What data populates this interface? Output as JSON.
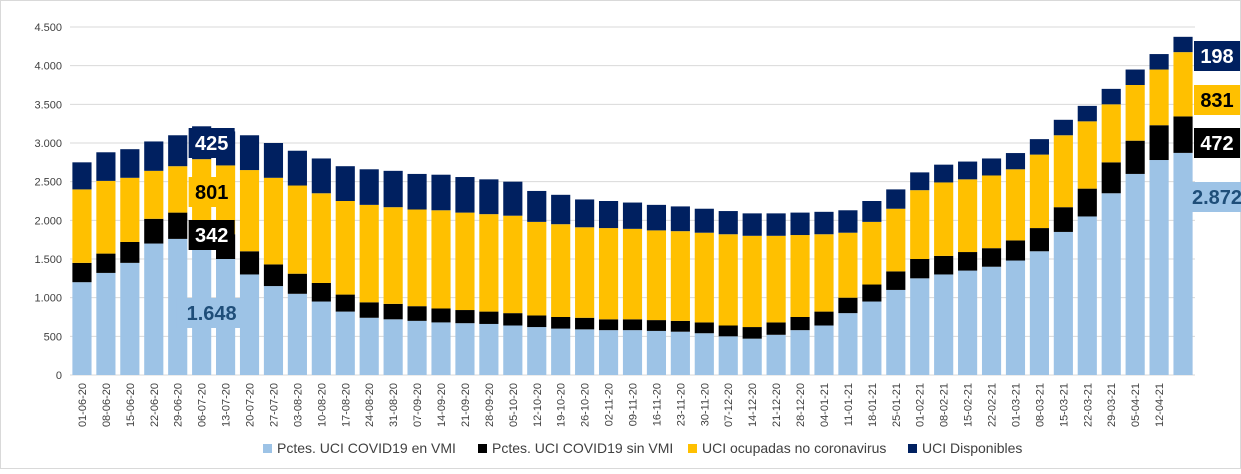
{
  "chart_data": {
    "type": "stacked_bar",
    "categories": [
      "01-06-20",
      "08-06-20",
      "15-06-20",
      "22-06-20",
      "29-06-20",
      "06-07-20",
      "13-07-20",
      "20-07-20",
      "27-07-20",
      "03-08-20",
      "10-08-20",
      "17-08-20",
      "24-08-20",
      "31-08-20",
      "07-09-20",
      "14-09-20",
      "21-09-20",
      "28-09-20",
      "05-10-20",
      "12-10-20",
      "19-10-20",
      "26-10-20",
      "02-11-20",
      "09-11-20",
      "16-11-20",
      "23-11-20",
      "30-11-20",
      "07-12-20",
      "14-12-20",
      "21-12-20",
      "28-12-20",
      "04-01-21",
      "11-01-21",
      "18-01-21",
      "25-01-21",
      "01-02-21",
      "08-02-21",
      "15-02-21",
      "22-02-21",
      "01-03-21",
      "08-03-21",
      "15-03-21",
      "22-03-21",
      "29-03-21",
      "05-04-21",
      "12-04-21",
      null
    ],
    "series": [
      {
        "name": "Pctes. UCI COVID19 en VMI",
        "color": "#9dc3e6",
        "values": [
          1200,
          1320,
          1450,
          1700,
          1760,
          1648,
          1500,
          1300,
          1150,
          1050,
          950,
          820,
          740,
          720,
          700,
          680,
          670,
          660,
          640,
          620,
          600,
          590,
          580,
          580,
          570,
          560,
          540,
          500,
          470,
          520,
          580,
          640,
          800,
          950,
          1100,
          1250,
          1300,
          1350,
          1400,
          1480,
          1600,
          1850,
          2050,
          2350,
          2600,
          2780,
          2872
        ],
        "value_labels": [
          null,
          null,
          null,
          null,
          null,
          "1.648",
          null,
          null,
          null,
          null,
          null,
          null,
          null,
          null,
          null,
          null,
          null,
          null,
          null,
          null,
          null,
          null,
          null,
          null,
          null,
          null,
          null,
          null,
          null,
          null,
          null,
          null,
          null,
          null,
          null,
          null,
          null,
          null,
          null,
          null,
          null,
          null,
          null,
          null,
          null,
          null,
          "2.872"
        ]
      },
      {
        "name": "Pctes. UCI COVID19 sin VMI",
        "color": "#000000",
        "values": [
          250,
          250,
          270,
          320,
          340,
          342,
          320,
          300,
          280,
          260,
          240,
          220,
          200,
          200,
          190,
          180,
          170,
          160,
          160,
          150,
          150,
          150,
          140,
          140,
          140,
          140,
          140,
          140,
          150,
          160,
          170,
          180,
          200,
          220,
          240,
          250,
          240,
          240,
          240,
          260,
          300,
          320,
          360,
          400,
          430,
          450,
          472
        ],
        "value_labels": [
          null,
          null,
          null,
          null,
          null,
          "342",
          null,
          null,
          null,
          null,
          null,
          null,
          null,
          null,
          null,
          null,
          null,
          null,
          null,
          null,
          null,
          null,
          null,
          null,
          null,
          null,
          null,
          null,
          null,
          null,
          null,
          null,
          null,
          null,
          null,
          null,
          null,
          null,
          null,
          null,
          null,
          null,
          null,
          null,
          null,
          null,
          "472"
        ]
      },
      {
        "name": "UCI ocupadas no coronavirus",
        "color": "#ffc000",
        "values": [
          950,
          940,
          830,
          620,
          600,
          801,
          890,
          1050,
          1120,
          1140,
          1160,
          1210,
          1260,
          1250,
          1250,
          1270,
          1260,
          1260,
          1260,
          1210,
          1200,
          1170,
          1180,
          1170,
          1160,
          1160,
          1160,
          1180,
          1180,
          1120,
          1060,
          1000,
          840,
          810,
          810,
          890,
          950,
          940,
          940,
          920,
          950,
          930,
          870,
          750,
          720,
          720,
          831
        ],
        "value_labels": [
          null,
          null,
          null,
          null,
          null,
          "801",
          null,
          null,
          null,
          null,
          null,
          null,
          null,
          null,
          null,
          null,
          null,
          null,
          null,
          null,
          null,
          null,
          null,
          null,
          null,
          null,
          null,
          null,
          null,
          null,
          null,
          null,
          null,
          null,
          null,
          null,
          null,
          null,
          null,
          null,
          null,
          null,
          null,
          null,
          null,
          null,
          "831"
        ]
      },
      {
        "name": "UCI Disponibles",
        "color": "#002060",
        "values": [
          350,
          370,
          370,
          380,
          400,
          425,
          440,
          450,
          450,
          450,
          450,
          450,
          460,
          470,
          460,
          460,
          460,
          450,
          440,
          400,
          380,
          360,
          350,
          340,
          330,
          320,
          310,
          300,
          290,
          290,
          290,
          290,
          290,
          270,
          250,
          230,
          230,
          230,
          220,
          210,
          200,
          200,
          200,
          200,
          200,
          200,
          198
        ],
        "value_labels": [
          null,
          null,
          null,
          null,
          null,
          "425",
          null,
          null,
          null,
          null,
          null,
          null,
          null,
          null,
          null,
          null,
          null,
          null,
          null,
          null,
          null,
          null,
          null,
          null,
          null,
          null,
          null,
          null,
          null,
          null,
          null,
          null,
          null,
          null,
          null,
          null,
          null,
          null,
          null,
          null,
          null,
          null,
          null,
          null,
          null,
          null,
          "198"
        ]
      }
    ],
    "ylim": [
      0,
      4500
    ],
    "yticks": [
      0,
      500,
      {
        "value": 1000,
        "label": "1.000"
      },
      {
        "value": 1500,
        "label": "1.500"
      },
      {
        "value": 2000,
        "label": "2.000"
      },
      {
        "value": 2500,
        "label": "2.500"
      },
      {
        "value": 3000,
        "label": "3.000"
      },
      {
        "value": 3500,
        "label": "3.500"
      },
      {
        "value": 4000,
        "label": "4.000"
      },
      {
        "value": 4500,
        "label": "4.500"
      }
    ],
    "grid": true,
    "legend": "bottom"
  }
}
